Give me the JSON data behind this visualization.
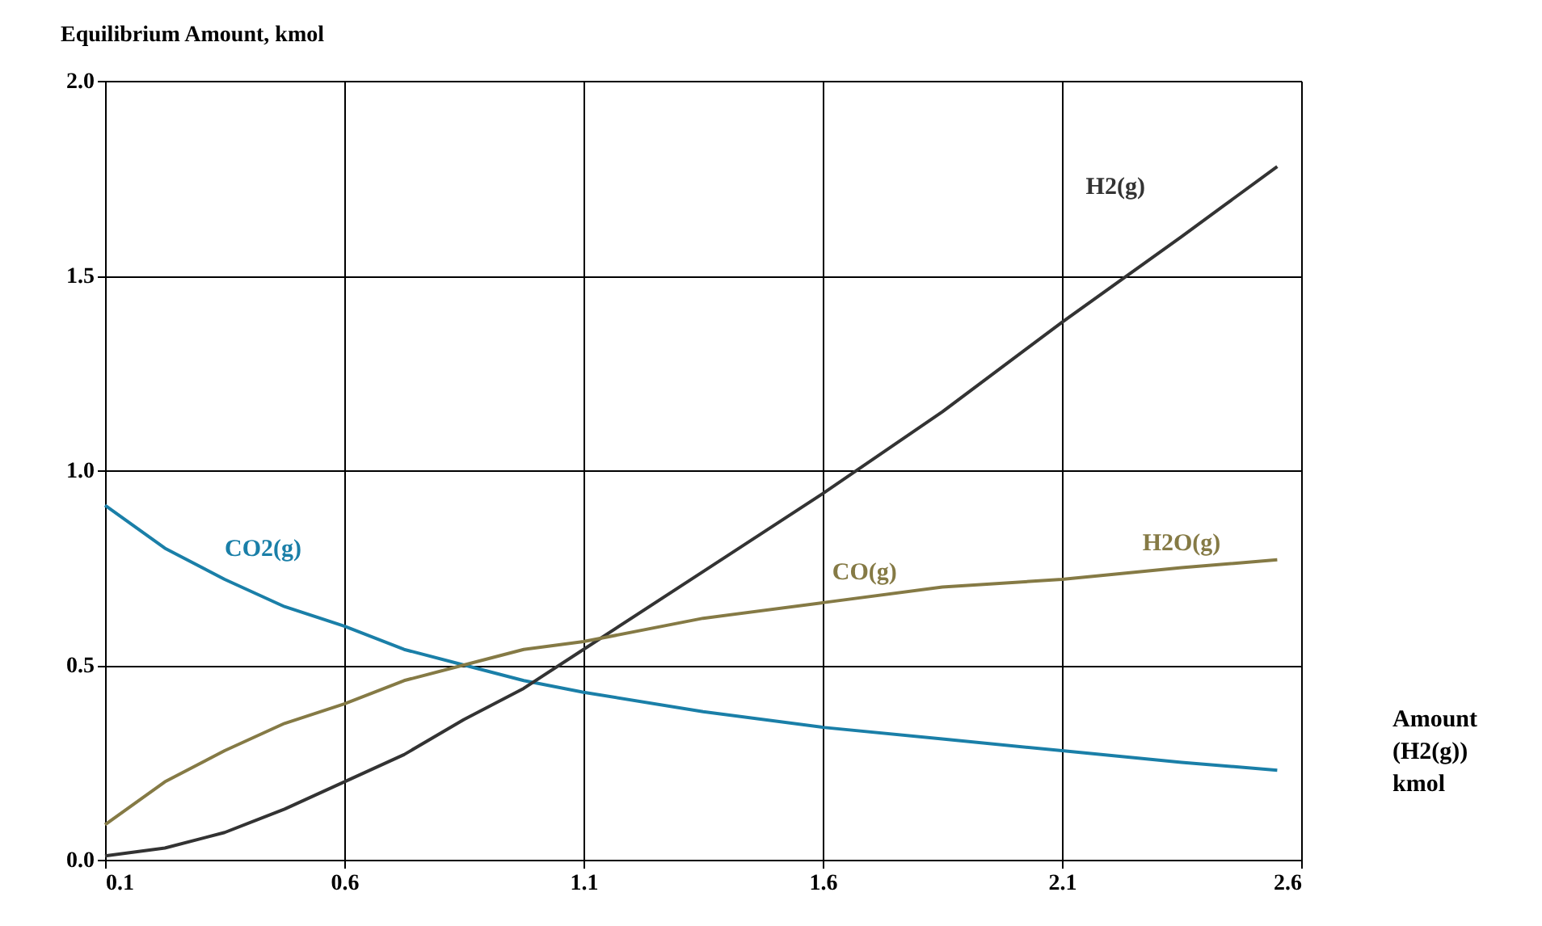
{
  "chart_data": {
    "type": "line",
    "xlabel": "Amount (H2(g)) kmol",
    "ylabel": "Equilibrium Amount, kmol",
    "x": [
      0.1,
      0.225,
      0.35,
      0.475,
      0.6,
      0.725,
      0.85,
      0.975,
      1.1,
      1.35,
      1.6,
      1.85,
      2.1,
      2.35,
      2.55
    ],
    "series": [
      {
        "name": "CO2(g)",
        "color": "#1a7fa8",
        "values": [
          0.91,
          0.8,
          0.72,
          0.65,
          0.6,
          0.54,
          0.5,
          0.46,
          0.43,
          0.38,
          0.34,
          0.31,
          0.28,
          0.25,
          0.23
        ]
      },
      {
        "name": "H2(g)",
        "color": "#333333",
        "values": [
          0.01,
          0.03,
          0.07,
          0.13,
          0.2,
          0.27,
          0.36,
          0.44,
          0.54,
          0.74,
          0.94,
          1.15,
          1.38,
          1.6,
          1.78
        ]
      },
      {
        "name": "CO(g)",
        "color": "#857a45",
        "values": [
          0.09,
          0.2,
          0.28,
          0.35,
          0.4,
          0.46,
          0.5,
          0.54,
          0.56,
          0.62,
          0.66,
          0.7,
          0.72,
          0.75,
          0.77
        ]
      }
    ],
    "annotations": [
      {
        "text": "H2O(g)",
        "x": 2.35,
        "y": 0.75
      }
    ],
    "xlim": [
      0.1,
      2.6
    ],
    "xticks": [
      0.1,
      0.6,
      1.1,
      1.6,
      2.1,
      2.6
    ],
    "ylim": [
      0,
      2
    ],
    "yticks": [
      {
        "value": 0,
        "label": "0.0"
      },
      {
        "value": 0.5,
        "label": "0.5"
      },
      {
        "value": 1,
        "label": "1.0"
      },
      {
        "value": 1.5,
        "label": "1.5"
      },
      {
        "value": 2,
        "label": "2.0"
      }
    ],
    "grid": true,
    "legend": false,
    "marker": "none",
    "line_style": "solid"
  }
}
